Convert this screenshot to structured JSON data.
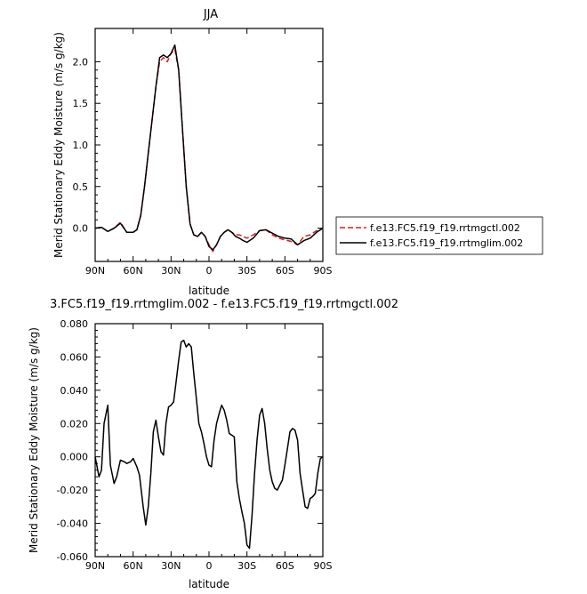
{
  "chart_data": [
    {
      "type": "line",
      "title": "JJA",
      "xlabel": "latitude",
      "ylabel": "Merid Stationary Eddy Moisture (m/s g/kg)",
      "x_ticks": [
        {
          "value": 90,
          "label": "90N"
        },
        {
          "value": 60,
          "label": "60N"
        },
        {
          "value": 30,
          "label": "30N"
        },
        {
          "value": 0,
          "label": "0"
        },
        {
          "value": -30,
          "label": "30S"
        },
        {
          "value": -60,
          "label": "60S"
        },
        {
          "value": -90,
          "label": "90S"
        }
      ],
      "y_ticks": [
        {
          "value": 0,
          "label": "0.0"
        },
        {
          "value": 0.5,
          "label": "0.5"
        },
        {
          "value": 1,
          "label": "1.0"
        },
        {
          "value": 1.5,
          "label": "1.5"
        },
        {
          "value": 2,
          "label": "2.0"
        }
      ],
      "xlim": [
        90,
        -90
      ],
      "ylim": [
        -0.4,
        2.4
      ],
      "legend_position": "right",
      "series": [
        {
          "name": "f.e13.FC5.f19_f19.rrtmgctl.002",
          "color": "#d62020",
          "style": "dashed",
          "x": [
            90,
            85,
            80,
            75,
            70,
            65,
            60,
            57,
            54,
            51,
            48,
            45,
            42,
            39,
            36,
            33,
            30,
            27,
            24,
            21,
            18,
            15,
            12,
            9,
            6,
            3,
            0,
            -3,
            -6,
            -9,
            -12,
            -15,
            -18,
            -21,
            -24,
            -27,
            -30,
            -35,
            -40,
            -45,
            -50,
            -55,
            -60,
            -65,
            -70,
            -75,
            -80,
            -85,
            -90
          ],
          "y": [
            0.0,
            0.01,
            -0.04,
            0.0,
            0.07,
            -0.05,
            -0.05,
            -0.02,
            0.15,
            0.5,
            0.9,
            1.3,
            1.7,
            2.0,
            2.05,
            2.0,
            2.1,
            2.15,
            1.9,
            1.2,
            0.5,
            0.05,
            -0.08,
            -0.1,
            -0.05,
            -0.1,
            -0.2,
            -0.28,
            -0.2,
            -0.1,
            -0.05,
            -0.02,
            -0.05,
            -0.08,
            -0.08,
            -0.1,
            -0.12,
            -0.08,
            -0.03,
            -0.02,
            -0.08,
            -0.12,
            -0.14,
            -0.16,
            -0.2,
            -0.1,
            -0.08,
            -0.03,
            0.0
          ]
        },
        {
          "name": "f.e13.FC5.f19_f19.rrtmglim.002",
          "color": "#000000",
          "style": "solid",
          "x": [
            90,
            85,
            80,
            75,
            70,
            65,
            60,
            57,
            54,
            51,
            48,
            45,
            42,
            39,
            36,
            33,
            30,
            27,
            24,
            21,
            18,
            15,
            12,
            9,
            6,
            3,
            0,
            -3,
            -6,
            -9,
            -12,
            -15,
            -18,
            -21,
            -24,
            -27,
            -30,
            -35,
            -40,
            -45,
            -50,
            -55,
            -60,
            -65,
            -70,
            -75,
            -80,
            -85,
            -90
          ],
          "y": [
            0.0,
            0.01,
            -0.04,
            0.0,
            0.06,
            -0.05,
            -0.05,
            -0.02,
            0.15,
            0.5,
            0.9,
            1.3,
            1.7,
            2.05,
            2.08,
            2.05,
            2.1,
            2.2,
            1.9,
            1.2,
            0.5,
            0.05,
            -0.08,
            -0.1,
            -0.05,
            -0.1,
            -0.22,
            -0.26,
            -0.2,
            -0.1,
            -0.05,
            -0.02,
            -0.05,
            -0.1,
            -0.12,
            -0.15,
            -0.17,
            -0.12,
            -0.03,
            -0.02,
            -0.06,
            -0.1,
            -0.12,
            -0.13,
            -0.2,
            -0.15,
            -0.12,
            -0.05,
            0.0
          ]
        }
      ]
    },
    {
      "type": "line",
      "title": "3.FC5.f19_f19.rrtmglim.002 - f.e13.FC5.f19_f19.rrtmgctl.002",
      "xlabel": "latitude",
      "ylabel": "Merid Stationary Eddy Moisture (m/s g/kg)",
      "x_ticks": [
        {
          "value": 90,
          "label": "90N"
        },
        {
          "value": 60,
          "label": "60N"
        },
        {
          "value": 30,
          "label": "30N"
        },
        {
          "value": 0,
          "label": "0"
        },
        {
          "value": -30,
          "label": "30S"
        },
        {
          "value": -60,
          "label": "60S"
        },
        {
          "value": -90,
          "label": "90S"
        }
      ],
      "y_ticks": [
        {
          "value": -0.06,
          "label": "-0.060"
        },
        {
          "value": -0.04,
          "label": "-0.040"
        },
        {
          "value": -0.02,
          "label": "-0.020"
        },
        {
          "value": 0,
          "label": "0.000"
        },
        {
          "value": 0.02,
          "label": "0.020"
        },
        {
          "value": 0.04,
          "label": "0.040"
        },
        {
          "value": 0.06,
          "label": "0.060"
        },
        {
          "value": 0.08,
          "label": "0.080"
        }
      ],
      "xlim": [
        90,
        -90
      ],
      "ylim": [
        -0.06,
        0.08
      ],
      "series": [
        {
          "color": "#000000",
          "style": "solid",
          "x": [
            90,
            87,
            85,
            83,
            80,
            78,
            75,
            73,
            70,
            67,
            65,
            62,
            60,
            57,
            55,
            52,
            50,
            48,
            46,
            44,
            42,
            40,
            38,
            36,
            34,
            32,
            30,
            28,
            26,
            24,
            22,
            20,
            18,
            16,
            14,
            12,
            10,
            8,
            6,
            4,
            2,
            0,
            -2,
            -4,
            -6,
            -8,
            -10,
            -12,
            -14,
            -16,
            -18,
            -20,
            -22,
            -24,
            -26,
            -28,
            -30,
            -32,
            -34,
            -36,
            -38,
            -40,
            -42,
            -44,
            -46,
            -48,
            -50,
            -52,
            -54,
            -56,
            -58,
            -60,
            -62,
            -64,
            -66,
            -68,
            -70,
            -72,
            -74,
            -76,
            -78,
            -80,
            -82,
            -84,
            -86,
            -88,
            -90
          ],
          "y": [
            0.0,
            -0.012,
            -0.008,
            0.02,
            0.031,
            -0.005,
            -0.016,
            -0.012,
            -0.002,
            -0.003,
            -0.004,
            -0.003,
            -0.001,
            -0.006,
            -0.011,
            -0.03,
            -0.041,
            -0.03,
            -0.01,
            0.015,
            0.022,
            0.012,
            0.003,
            0.001,
            0.02,
            0.03,
            0.031,
            0.033,
            0.045,
            0.058,
            0.069,
            0.07,
            0.066,
            0.068,
            0.066,
            0.05,
            0.035,
            0.02,
            0.015,
            0.008,
            0.0,
            -0.005,
            -0.006,
            0.01,
            0.02,
            0.026,
            0.031,
            0.028,
            0.022,
            0.014,
            0.013,
            0.012,
            -0.015,
            -0.025,
            -0.033,
            -0.04,
            -0.053,
            -0.055,
            -0.035,
            -0.01,
            0.01,
            0.025,
            0.029,
            0.02,
            0.005,
            -0.008,
            -0.015,
            -0.019,
            -0.02,
            -0.017,
            -0.014,
            -0.005,
            0.005,
            0.015,
            0.017,
            0.016,
            0.01,
            -0.01,
            -0.02,
            -0.03,
            -0.031,
            -0.025,
            -0.024,
            -0.022,
            -0.01,
            -0.001,
            0.0
          ]
        }
      ]
    }
  ]
}
